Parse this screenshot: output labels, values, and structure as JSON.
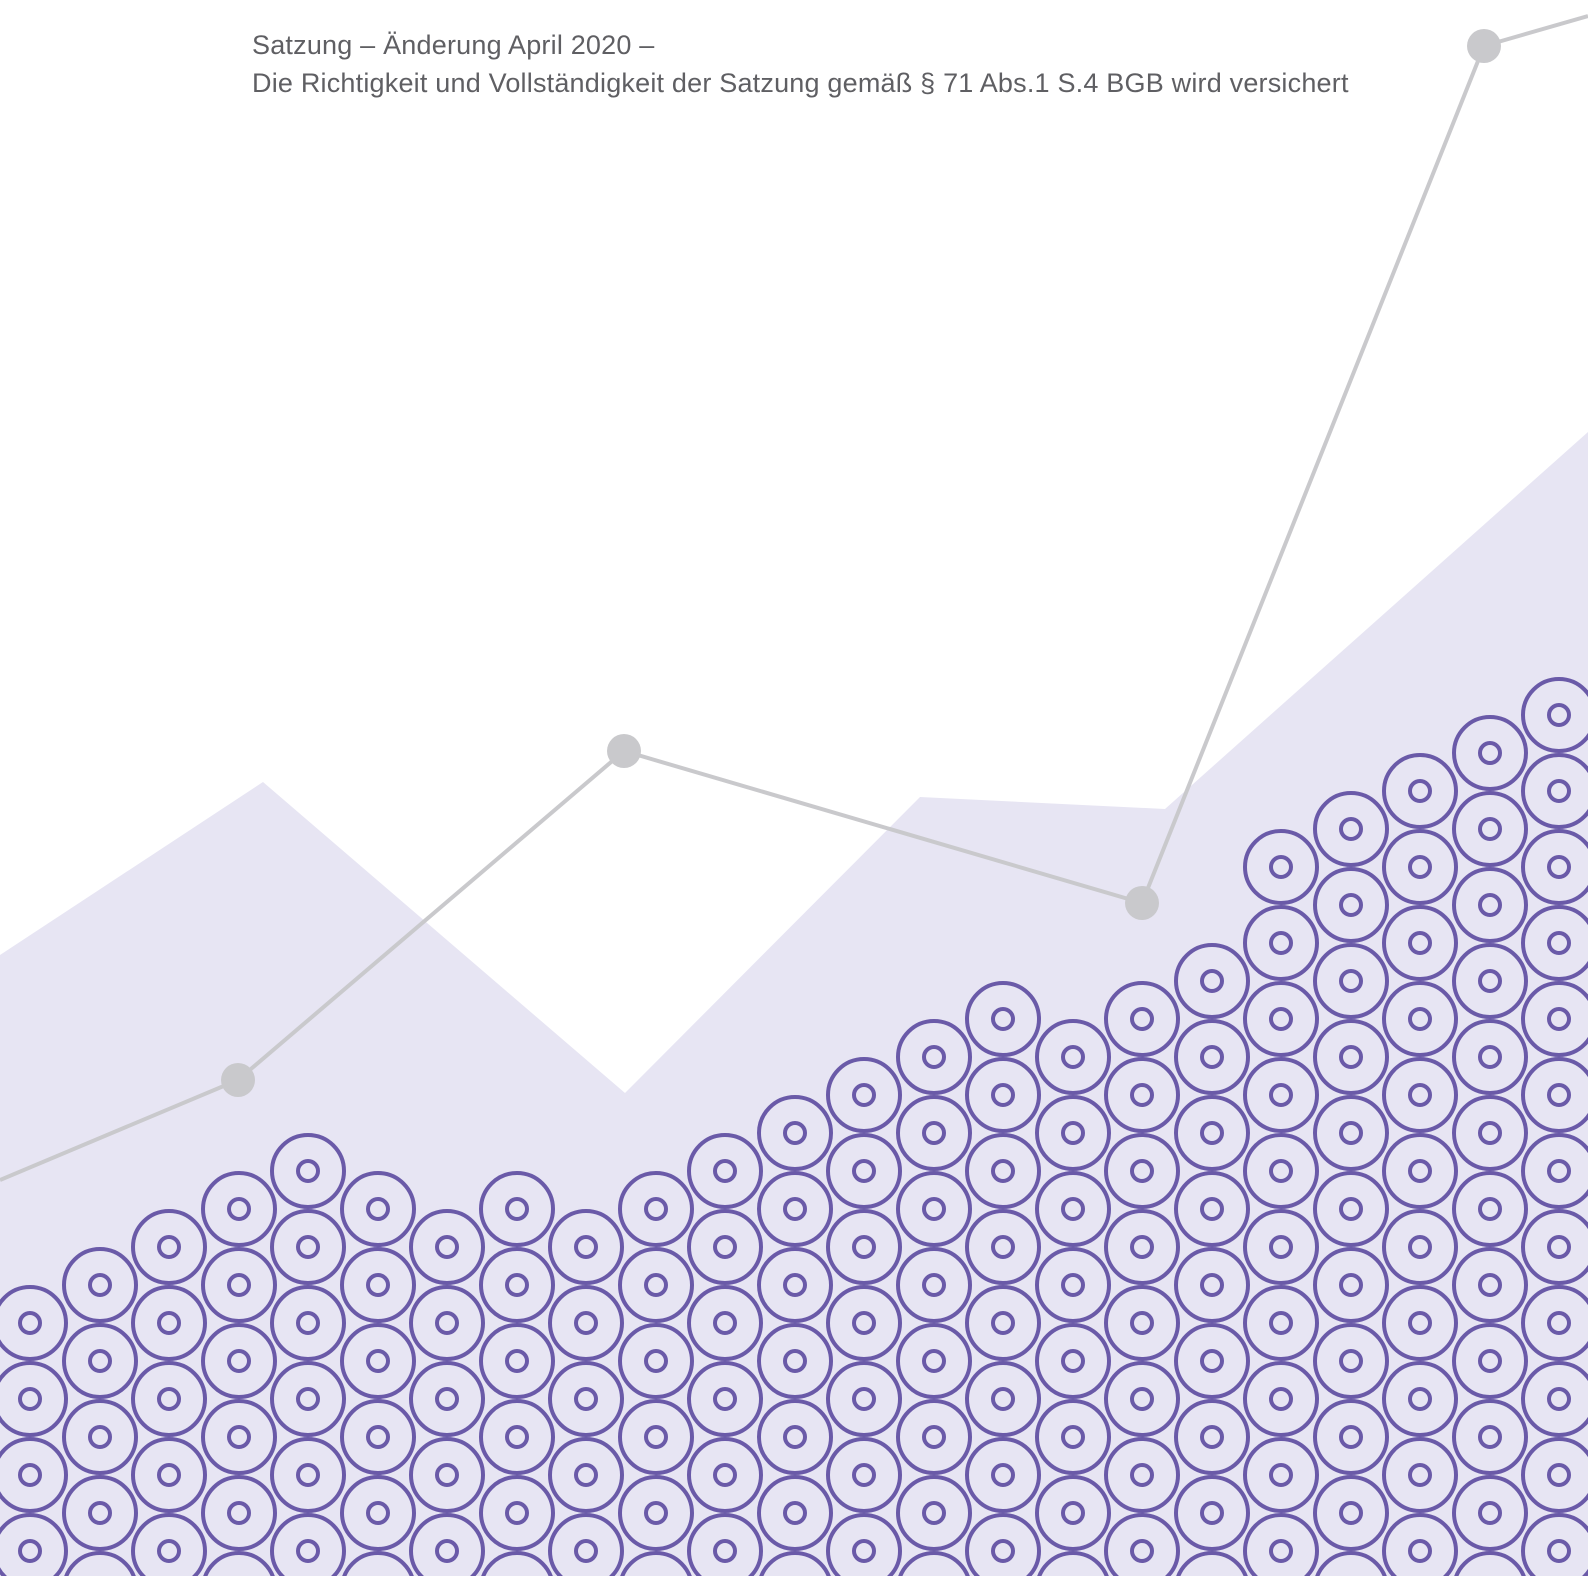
{
  "header": {
    "line1": "Satzung – Änderung April 2020 –",
    "line2": "Die Richtigkeit und Vollständigkeit der Satzung gemäß § 71 Abs.1 S.4 BGB wird versichert"
  },
  "colors": {
    "background": "#ffffff",
    "area_fill": "#e7e5f3",
    "ring_stroke": "#6a5aa8",
    "line_gray": "#c9c9cc",
    "text": "#5f5f63"
  },
  "decoration": {
    "pattern_icon": "concentric-circle-icon",
    "line_marker_icon": "gray-dot-icon"
  }
}
